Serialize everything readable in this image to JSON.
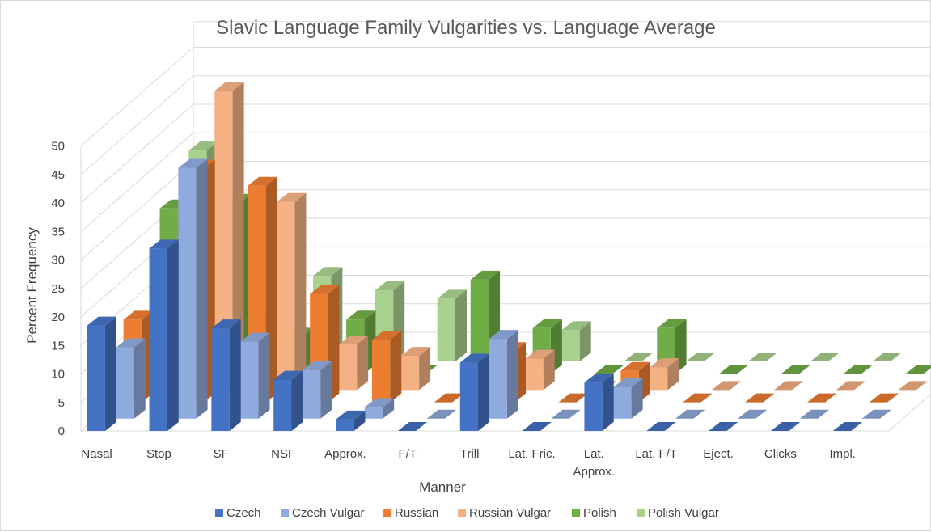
{
  "chart_data": {
    "type": "bar",
    "variant": "3d-clustered-column",
    "title": "Slavic Language Family Vulgarities vs. Language Average",
    "xlabel": "Manner",
    "ylabel": "Percent Frequency",
    "ylim": [
      0,
      50
    ],
    "y_ticks": [
      0,
      5,
      10,
      15,
      20,
      25,
      30,
      35,
      40,
      45,
      50
    ],
    "grid": true,
    "legend_position": "bottom",
    "categories": [
      "Nasal",
      "Stop",
      "SF",
      "NSF",
      "Approx.",
      "F/T",
      "Trill",
      "Lat. Fric.",
      "Lat. Approx.",
      "Lat. F/T",
      "Eject.",
      "Clicks",
      "Impl."
    ],
    "series": [
      {
        "name": "Czech",
        "color": "#4472c4",
        "values": [
          18.5,
          32,
          18,
          9,
          2,
          0,
          12,
          0,
          8.5,
          0,
          0,
          0,
          0
        ]
      },
      {
        "name": "Czech Vulgar",
        "color": "#8faadc",
        "values": [
          12.5,
          44,
          13.5,
          8.5,
          2,
          0,
          14,
          0,
          5.5,
          0,
          0,
          0,
          0
        ]
      },
      {
        "name": "Russian",
        "color": "#ed7d31",
        "values": [
          14.5,
          41,
          38,
          19,
          11,
          0,
          9,
          0,
          5.5,
          0,
          0,
          0,
          0
        ]
      },
      {
        "name": "Russian Vulgar",
        "color": "#f4b183",
        "values": [
          0,
          52.5,
          33,
          8,
          6,
          0.5,
          5.5,
          0,
          4,
          0,
          0,
          0,
          0
        ]
      },
      {
        "name": "Polish",
        "color": "#70ad47",
        "values": [
          29,
          30,
          6.5,
          9.5,
          0,
          16.5,
          8,
          0,
          8,
          0,
          0,
          0,
          0
        ]
      },
      {
        "name": "Polish Vulgar",
        "color": "#a9d18e",
        "values": [
          37,
          7,
          15,
          12.5,
          11,
          0,
          5.5,
          0,
          0,
          0,
          0,
          0,
          0
        ]
      }
    ]
  }
}
